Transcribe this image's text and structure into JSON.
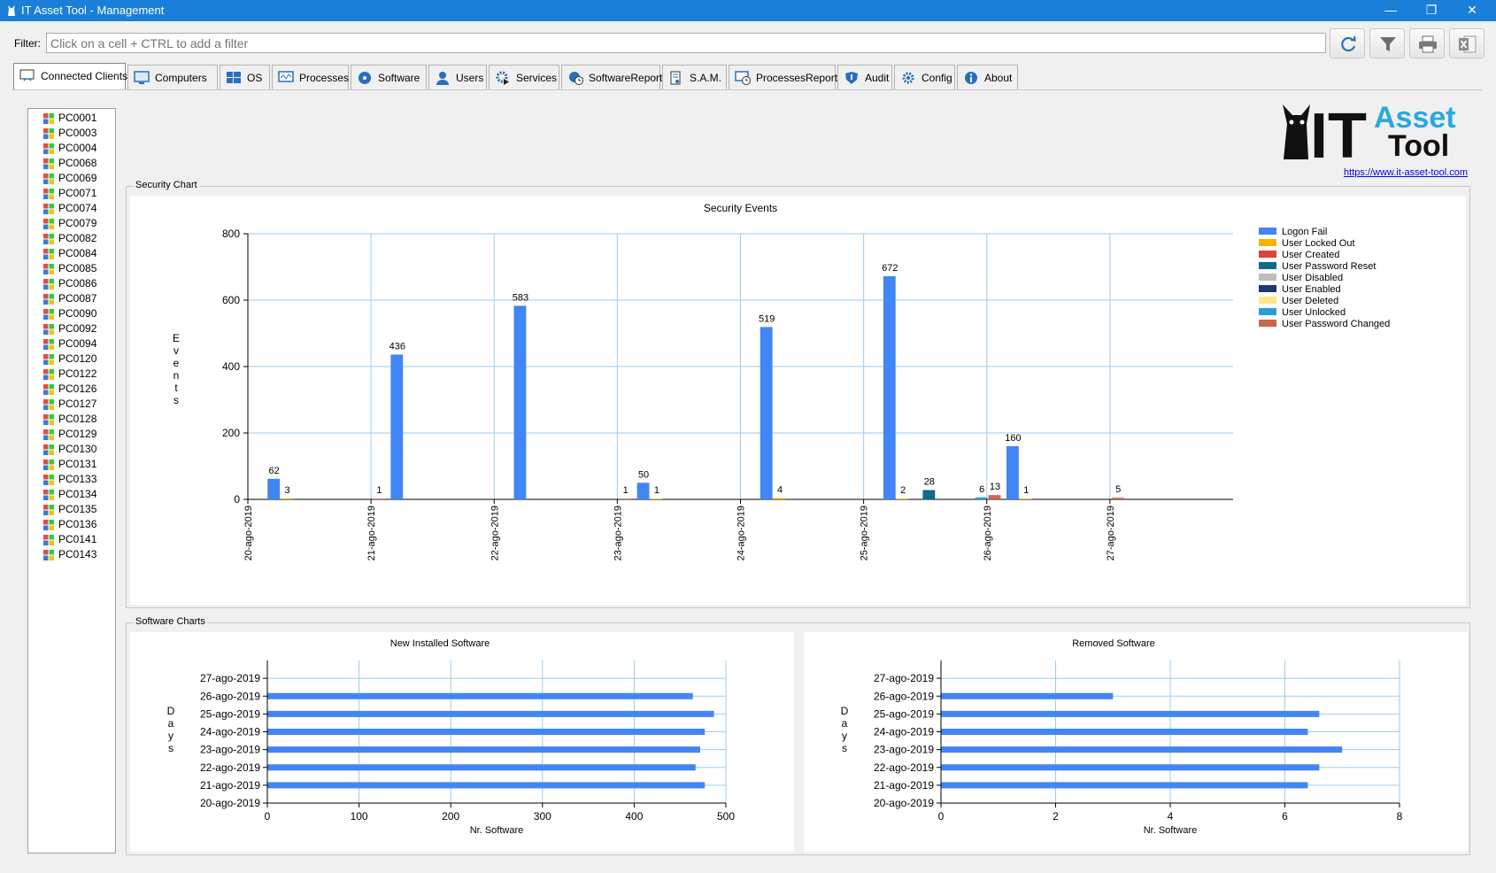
{
  "window": {
    "title": "IT Asset Tool - Management"
  },
  "filter": {
    "label": "Filter:",
    "placeholder": "Click on a cell + CTRL to add a filter"
  },
  "tabs": [
    {
      "label": "Connected Clients",
      "icon": "wifi-monitor-icon",
      "active": true
    },
    {
      "label": "Computers",
      "icon": "monitor-icon"
    },
    {
      "label": "OS",
      "icon": "windows-logo-icon"
    },
    {
      "label": "Processes",
      "icon": "process-monitor-icon"
    },
    {
      "label": "Software",
      "icon": "disc-icon"
    },
    {
      "label": "Users",
      "icon": "user-icon"
    },
    {
      "label": "Services",
      "icon": "gear-play-icon"
    },
    {
      "label": "SoftwareReport",
      "icon": "disc-clock-icon"
    },
    {
      "label": "S.A.M.",
      "icon": "license-icon"
    },
    {
      "label": "ProcessesReport",
      "icon": "monitor-clock-icon"
    },
    {
      "label": "Audit",
      "icon": "shield-icon"
    },
    {
      "label": "Config",
      "icon": "gear-icon"
    },
    {
      "label": "About",
      "icon": "info-icon"
    }
  ],
  "clients": [
    "PC0001",
    "PC0003",
    "PC0004",
    "PC0068",
    "PC0069",
    "PC0071",
    "PC0074",
    "PC0079",
    "PC0082",
    "PC0084",
    "PC0085",
    "PC0086",
    "PC0087",
    "PC0090",
    "PC0092",
    "PC0094",
    "PC0120",
    "PC0122",
    "PC0126",
    "PC0127",
    "PC0128",
    "PC0129",
    "PC0130",
    "PC0131",
    "PC0133",
    "PC0134",
    "PC0135",
    "PC0136",
    "PC0141",
    "PC0143"
  ],
  "logo": {
    "text_it": "IT",
    "text_asset": "Asset",
    "text_tool": "Tool",
    "url": "https://www.it-asset-tool.com"
  },
  "security_group": {
    "label": "Security Chart"
  },
  "software_group": {
    "label": "Software Charts"
  },
  "colors": {
    "accent": "#1a7fd8",
    "series": [
      "#4285f4",
      "#f4b400",
      "#db4437",
      "#0f6b8c",
      "#bdbdbd",
      "#1e3a6b",
      "#fde68a",
      "#2a9fd8",
      "#c46a50"
    ]
  },
  "chart_data": [
    {
      "id": "security",
      "type": "bar",
      "title": "Security Events",
      "xlabel": "",
      "ylabel": "Events",
      "ylim": [
        0,
        800
      ],
      "yticks": [
        0,
        200,
        400,
        600,
        800
      ],
      "grid": true,
      "legend": "right",
      "categories": [
        "20-ago-2019",
        "21-ago-2019",
        "22-ago-2019",
        "23-ago-2019",
        "24-ago-2019",
        "25-ago-2019",
        "26-ago-2019",
        "27-ago-2019"
      ],
      "series": [
        {
          "name": "Logon Fail",
          "color": "#4285f4",
          "values": [
            62,
            436,
            583,
            50,
            519,
            672,
            160,
            null
          ]
        },
        {
          "name": "User Locked Out",
          "color": "#f4b400",
          "values": [
            3,
            null,
            null,
            1,
            4,
            2,
            1,
            null
          ]
        },
        {
          "name": "User Created",
          "color": "#db4437",
          "values": [
            null,
            null,
            null,
            null,
            null,
            null,
            null,
            null
          ]
        },
        {
          "name": "User Password Reset",
          "color": "#0f6b8c",
          "values": [
            null,
            null,
            null,
            null,
            null,
            28,
            null,
            null
          ]
        },
        {
          "name": "User Disabled",
          "color": "#bdbdbd",
          "values": [
            null,
            null,
            null,
            null,
            null,
            null,
            null,
            null
          ]
        },
        {
          "name": "User Enabled",
          "color": "#1e3a6b",
          "values": [
            null,
            null,
            null,
            null,
            null,
            null,
            null,
            null
          ]
        },
        {
          "name": "User Deleted",
          "color": "#fde68a",
          "values": [
            null,
            null,
            null,
            null,
            null,
            null,
            null,
            null
          ]
        },
        {
          "name": "User Unlocked",
          "color": "#2a9fd8",
          "values": [
            null,
            null,
            null,
            null,
            null,
            6,
            null,
            null
          ]
        },
        {
          "name": "User Password Changed",
          "color": "#c46a50",
          "values": [
            1,
            null,
            1,
            null,
            null,
            13,
            5,
            null
          ]
        }
      ]
    },
    {
      "id": "new-software",
      "type": "bar",
      "orientation": "horizontal",
      "title": "New Installed Software",
      "xlabel": "Nr. Software",
      "ylabel": "Days",
      "xlim": [
        0,
        500
      ],
      "xticks": [
        0,
        100,
        200,
        300,
        400,
        500
      ],
      "grid": true,
      "categories": [
        "20-ago-2019",
        "21-ago-2019",
        "22-ago-2019",
        "23-ago-2019",
        "24-ago-2019",
        "25-ago-2019",
        "26-ago-2019",
        "27-ago-2019"
      ],
      "values": [
        null,
        477,
        467,
        472,
        477,
        487,
        464,
        null
      ]
    },
    {
      "id": "removed-software",
      "type": "bar",
      "orientation": "horizontal",
      "title": "Removed Software",
      "xlabel": "Nr. Software",
      "ylabel": "Days",
      "xlim": [
        0,
        8
      ],
      "xticks": [
        0,
        2,
        4,
        6,
        8
      ],
      "grid": true,
      "categories": [
        "20-ago-2019",
        "21-ago-2019",
        "22-ago-2019",
        "23-ago-2019",
        "24-ago-2019",
        "25-ago-2019",
        "26-ago-2019",
        "27-ago-2019"
      ],
      "values": [
        null,
        6.4,
        6.6,
        7,
        6.4,
        6.6,
        3,
        null
      ]
    }
  ]
}
